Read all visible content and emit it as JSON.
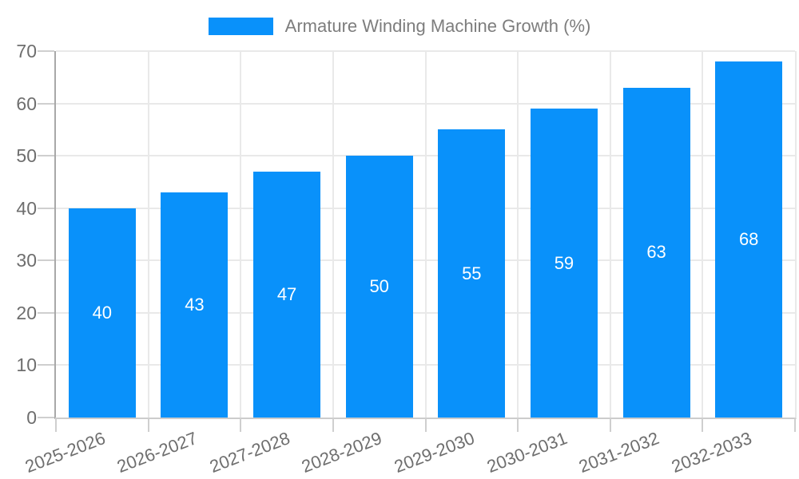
{
  "legend": {
    "label": "Armature Winding Machine Growth (%)"
  },
  "colors": {
    "bar": "#0991fa",
    "bar_value_text": "#ffffff",
    "tick_text": "#6e6e6e",
    "legend_text": "#7d7d7d",
    "gridline": "#e9e9e9",
    "y_axis_line": "#a8a8a8",
    "x_axis_line": "#cccccc"
  },
  "chart_data": {
    "type": "bar",
    "title": "Armature Winding Machine Growth (%)",
    "categories": [
      "2025-2026",
      "2026-2027",
      "2027-2028",
      "2028-2029",
      "2029-2030",
      "2030-2031",
      "2031-2032",
      "2032-2033"
    ],
    "values": [
      40,
      43,
      47,
      50,
      55,
      59,
      63,
      68
    ],
    "xlabel": "",
    "ylabel": "",
    "ylim": [
      0,
      70
    ],
    "yticks": [
      0,
      10,
      20,
      30,
      40,
      50,
      60,
      70
    ],
    "grid": true,
    "legend_position": "top-center",
    "bar_color": "#0991fa",
    "value_labels": "inside-center",
    "x_label_rotation_deg": -21
  }
}
